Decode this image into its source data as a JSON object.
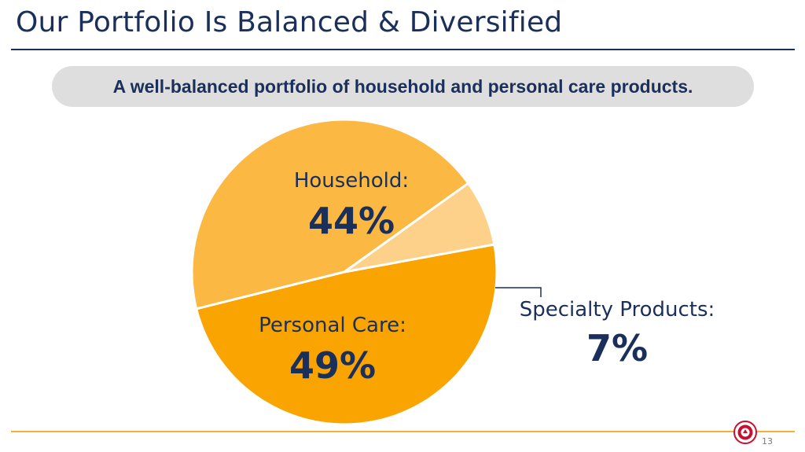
{
  "slide": {
    "title": "Our Portfolio Is Balanced & Diversified",
    "subtitle": "A well-balanced portfolio of household and personal care products.",
    "page_number": "13"
  },
  "colors": {
    "title": "#1b2f5b",
    "household": "#fbb843",
    "personal_care": "#f9a400",
    "specialty": "#fdd18a",
    "accent_rule": "#f5b135"
  },
  "chart_data": {
    "type": "pie",
    "slices": [
      {
        "label": "Household:",
        "value": 44,
        "display": "44%"
      },
      {
        "label": "Personal Care:",
        "value": 49,
        "display": "49%"
      },
      {
        "label": "Specialty Products:",
        "value": 7,
        "display": "7%"
      }
    ]
  },
  "logo": {
    "icon": "brand-seal-icon"
  }
}
